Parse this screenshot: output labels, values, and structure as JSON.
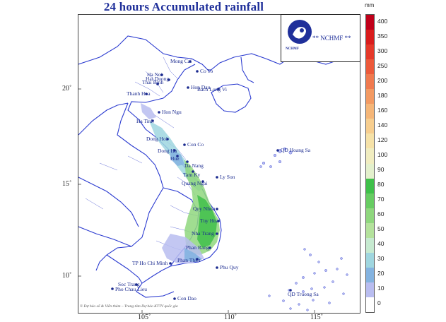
{
  "title": "24 hours Accumulated rainfall",
  "logo": {
    "tag": "** NCHMF **",
    "name": "NCHMF"
  },
  "credit": "© Dự báo số & Viễn thám – Trung tâm Dự báo KTTV quốc gia",
  "axes": {
    "lon_ticks": [
      "105˚",
      "110˚",
      "115˚"
    ],
    "lat_ticks": [
      "20˚",
      "15˚",
      "10˚"
    ]
  },
  "legend": {
    "unit": "mm",
    "labels": [
      "400",
      "350",
      "300",
      "250",
      "200",
      "180",
      "160",
      "140",
      "120",
      "100",
      "90",
      "80",
      "70",
      "60",
      "50",
      "40",
      "30",
      "20",
      "10",
      "0"
    ],
    "colors": [
      "#c0001a",
      "#d91d1d",
      "#e5392a",
      "#ec5a3b",
      "#f07a4f",
      "#f39a62",
      "#f5b678",
      "#f7ce8f",
      "#f6e2a8",
      "#f1edc0",
      "#e3f0cc",
      "#3fc04a",
      "#67cc62",
      "#8fd77e",
      "#b4e29c",
      "#c6ead0",
      "#9fd6df",
      "#84b3e0",
      "#b9bdf0",
      "#ffffff"
    ]
  },
  "places": [
    {
      "name": "Mong Cai"
    },
    {
      "name": "Ha Noi"
    },
    {
      "name": "Co To"
    },
    {
      "name": "Hai Duong"
    },
    {
      "name": "Hon Dau"
    },
    {
      "name": "Thai Binh"
    },
    {
      "name": "Bach Long Vi"
    },
    {
      "name": "Thanh Hoa"
    },
    {
      "name": "Hon Ngu"
    },
    {
      "name": "Ha Tinh"
    },
    {
      "name": "Dong Hoi"
    },
    {
      "name": "Con Co"
    },
    {
      "name": "Dong Ha"
    },
    {
      "name": "Hue"
    },
    {
      "name": "Da Nang"
    },
    {
      "name": "QD Hoang Sa"
    },
    {
      "name": "Tam Ky"
    },
    {
      "name": "Ly Son"
    },
    {
      "name": "Quang Ngai"
    },
    {
      "name": "Quy Nhon"
    },
    {
      "name": "Tuy Hoa"
    },
    {
      "name": "Nha Trang"
    },
    {
      "name": "Phan Rang"
    },
    {
      "name": "Phan Thiet"
    },
    {
      "name": "TP Ho Chi Minh"
    },
    {
      "name": "Phu Quy"
    },
    {
      "name": "Soc Trang"
    },
    {
      "name": "Pho Chau Lieu"
    },
    {
      "name": "Con Dao"
    },
    {
      "name": "QD Truong Sa"
    }
  ]
}
